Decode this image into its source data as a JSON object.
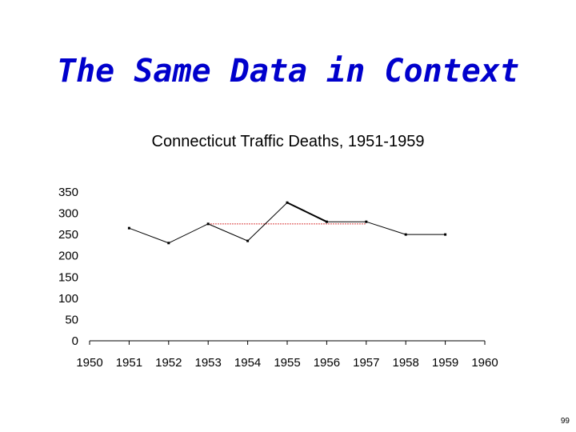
{
  "slide": {
    "title": "The Same Data in Context",
    "page_number": "99"
  },
  "chart_data": {
    "type": "line",
    "title": "Connecticut Traffic Deaths, 1951-1959",
    "xlabel": "",
    "ylabel": "",
    "x_ticks": [
      1950,
      1951,
      1952,
      1953,
      1954,
      1955,
      1956,
      1957,
      1958,
      1959,
      1960
    ],
    "y_ticks": [
      0,
      50,
      100,
      150,
      200,
      250,
      300,
      350
    ],
    "xlim": [
      1950,
      1960
    ],
    "ylim": [
      0,
      350
    ],
    "series": [
      {
        "x": [
          1951,
          1952,
          1953,
          1954,
          1955,
          1956,
          1957,
          1958,
          1959
        ],
        "values": [
          265,
          230,
          275,
          235,
          325,
          280,
          280,
          250,
          250
        ],
        "color": "#000000"
      }
    ],
    "reference_line": {
      "y": 275,
      "x_range": [
        1953,
        1957
      ],
      "color": "#cc0000",
      "style": "dotted"
    },
    "grid": false,
    "legend": "none"
  }
}
